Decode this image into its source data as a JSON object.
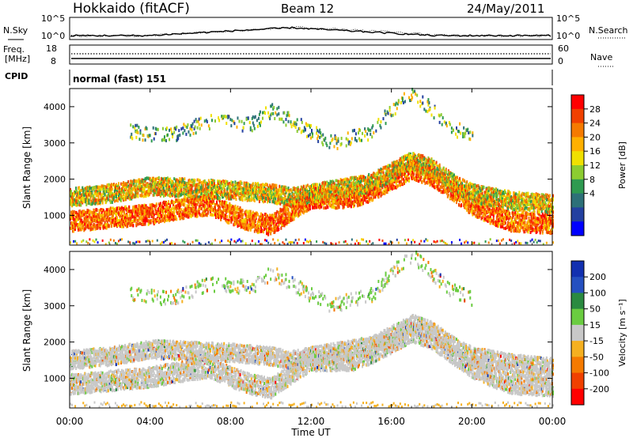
{
  "header": {
    "station": "Hokkaido (fitACF)",
    "beam": "Beam 12",
    "date": "24/May/2011"
  },
  "noise_panel": {
    "left_label": "N.Sky",
    "right_label": "N.Search",
    "left_ticks": [
      "10^5",
      "10^0"
    ],
    "right_ticks": [
      "10^5",
      "10^0"
    ]
  },
  "freq_panel": {
    "left_label_1": "Freq.",
    "left_label_2": "[MHz]",
    "right_label": "Nave",
    "left_ticks": [
      "18",
      "8"
    ],
    "right_ticks": [
      "60",
      "0"
    ]
  },
  "cpid_panel": {
    "label": "CPID",
    "value": "normal (fast) 151"
  },
  "x_axis": {
    "label": "Time UT",
    "ticks": [
      "00:00",
      "04:00",
      "08:00",
      "12:00",
      "16:00",
      "20:00",
      "00:00"
    ]
  },
  "chart_data": [
    {
      "type": "heatmap",
      "panel": "power",
      "ylabel": "Slant Range [km]",
      "ylim": [
        180,
        4500
      ],
      "yticks": [
        1000,
        2000,
        3000,
        4000
      ],
      "xlim_hours": [
        0,
        24
      ],
      "colorbar": {
        "label": "Power [dB]",
        "ticks": [
          "28",
          "24",
          "20",
          "16",
          "12",
          "8",
          "4"
        ],
        "colors": [
          "#ff0000",
          "#f04000",
          "#f57a00",
          "#ffb000",
          "#f0e000",
          "#8ccc30",
          "#2e9a50",
          "#2d7078",
          "#2340a0",
          "#0000ff"
        ]
      },
      "scatter_bands": [
        {
          "name": "near-range low band",
          "points": [
            [
              0,
              750
            ],
            [
              2,
              850
            ],
            [
              4,
              950
            ],
            [
              6,
              1150
            ],
            [
              7,
              1200
            ],
            [
              8,
              950
            ],
            [
              9,
              750
            ],
            [
              10,
              650
            ],
            [
              11,
              1050
            ],
            [
              12,
              1400
            ],
            [
              14,
              1400
            ],
            [
              15,
              1600
            ],
            [
              16,
              1900
            ],
            [
              17,
              2200
            ],
            [
              18,
              2000
            ],
            [
              19,
              1600
            ],
            [
              20,
              1200
            ],
            [
              21,
              950
            ],
            [
              22,
              750
            ],
            [
              24,
              700
            ]
          ]
        },
        {
          "name": "mid band",
          "points": [
            [
              0,
              1500
            ],
            [
              2,
              1600
            ],
            [
              4,
              1800
            ],
            [
              6,
              1750
            ],
            [
              8,
              1700
            ],
            [
              10,
              1600
            ],
            [
              11,
              1500
            ],
            [
              13,
              1700
            ],
            [
              15,
              1900
            ],
            [
              16,
              2200
            ],
            [
              17,
              2500
            ],
            [
              18,
              2300
            ],
            [
              19,
              1900
            ],
            [
              20,
              1600
            ],
            [
              22,
              1400
            ],
            [
              24,
              1300
            ]
          ]
        },
        {
          "name": "upper band",
          "points": [
            [
              3,
              3300
            ],
            [
              5,
              3200
            ],
            [
              7,
              3600
            ],
            [
              9,
              3500
            ],
            [
              10,
              3900
            ],
            [
              11,
              3600
            ],
            [
              13,
              3000
            ],
            [
              15,
              3300
            ],
            [
              16,
              3900
            ],
            [
              17,
              4400
            ],
            [
              18,
              3900
            ],
            [
              19,
              3400
            ],
            [
              20,
              3200
            ]
          ]
        }
      ]
    },
    {
      "type": "heatmap",
      "panel": "velocity",
      "ylabel": "Slant Range [km]",
      "ylim": [
        180,
        4500
      ],
      "yticks": [
        1000,
        2000,
        3000,
        4000
      ],
      "xlim_hours": [
        0,
        24
      ],
      "colorbar": {
        "label": "Velocity [m s⁻¹]",
        "ticks": [
          "200",
          "100",
          "50",
          "15",
          "-15",
          "-50",
          "-100",
          "-200"
        ],
        "colors": [
          "#1230b0",
          "#2550c0",
          "#2a8a40",
          "#6acc40",
          "#c8c8c8",
          "#f5b020",
          "#f57a00",
          "#f04000",
          "#ff0000"
        ]
      },
      "scatter_bands": [
        {
          "name": "near-range low band",
          "points": [
            [
              0,
              750
            ],
            [
              2,
              850
            ],
            [
              4,
              950
            ],
            [
              6,
              1150
            ],
            [
              7,
              1200
            ],
            [
              8,
              950
            ],
            [
              9,
              750
            ],
            [
              10,
              650
            ],
            [
              11,
              1050
            ],
            [
              12,
              1400
            ],
            [
              14,
              1400
            ],
            [
              15,
              1600
            ],
            [
              16,
              1900
            ],
            [
              17,
              2200
            ],
            [
              18,
              2000
            ],
            [
              19,
              1600
            ],
            [
              20,
              1200
            ],
            [
              21,
              950
            ],
            [
              22,
              750
            ],
            [
              24,
              700
            ]
          ]
        },
        {
          "name": "mid band",
          "points": [
            [
              0,
              1500
            ],
            [
              2,
              1600
            ],
            [
              4,
              1800
            ],
            [
              6,
              1750
            ],
            [
              8,
              1700
            ],
            [
              10,
              1600
            ],
            [
              11,
              1500
            ],
            [
              13,
              1700
            ],
            [
              15,
              1900
            ],
            [
              16,
              2200
            ],
            [
              17,
              2500
            ],
            [
              18,
              2300
            ],
            [
              19,
              1900
            ],
            [
              20,
              1600
            ],
            [
              22,
              1400
            ],
            [
              24,
              1300
            ]
          ]
        },
        {
          "name": "upper band",
          "points": [
            [
              3,
              3300
            ],
            [
              5,
              3200
            ],
            [
              7,
              3600
            ],
            [
              9,
              3500
            ],
            [
              10,
              3900
            ],
            [
              11,
              3600
            ],
            [
              13,
              3000
            ],
            [
              15,
              3300
            ],
            [
              16,
              3900
            ],
            [
              17,
              4400
            ],
            [
              18,
              3900
            ],
            [
              19,
              3400
            ],
            [
              20,
              3200
            ]
          ]
        }
      ]
    }
  ]
}
